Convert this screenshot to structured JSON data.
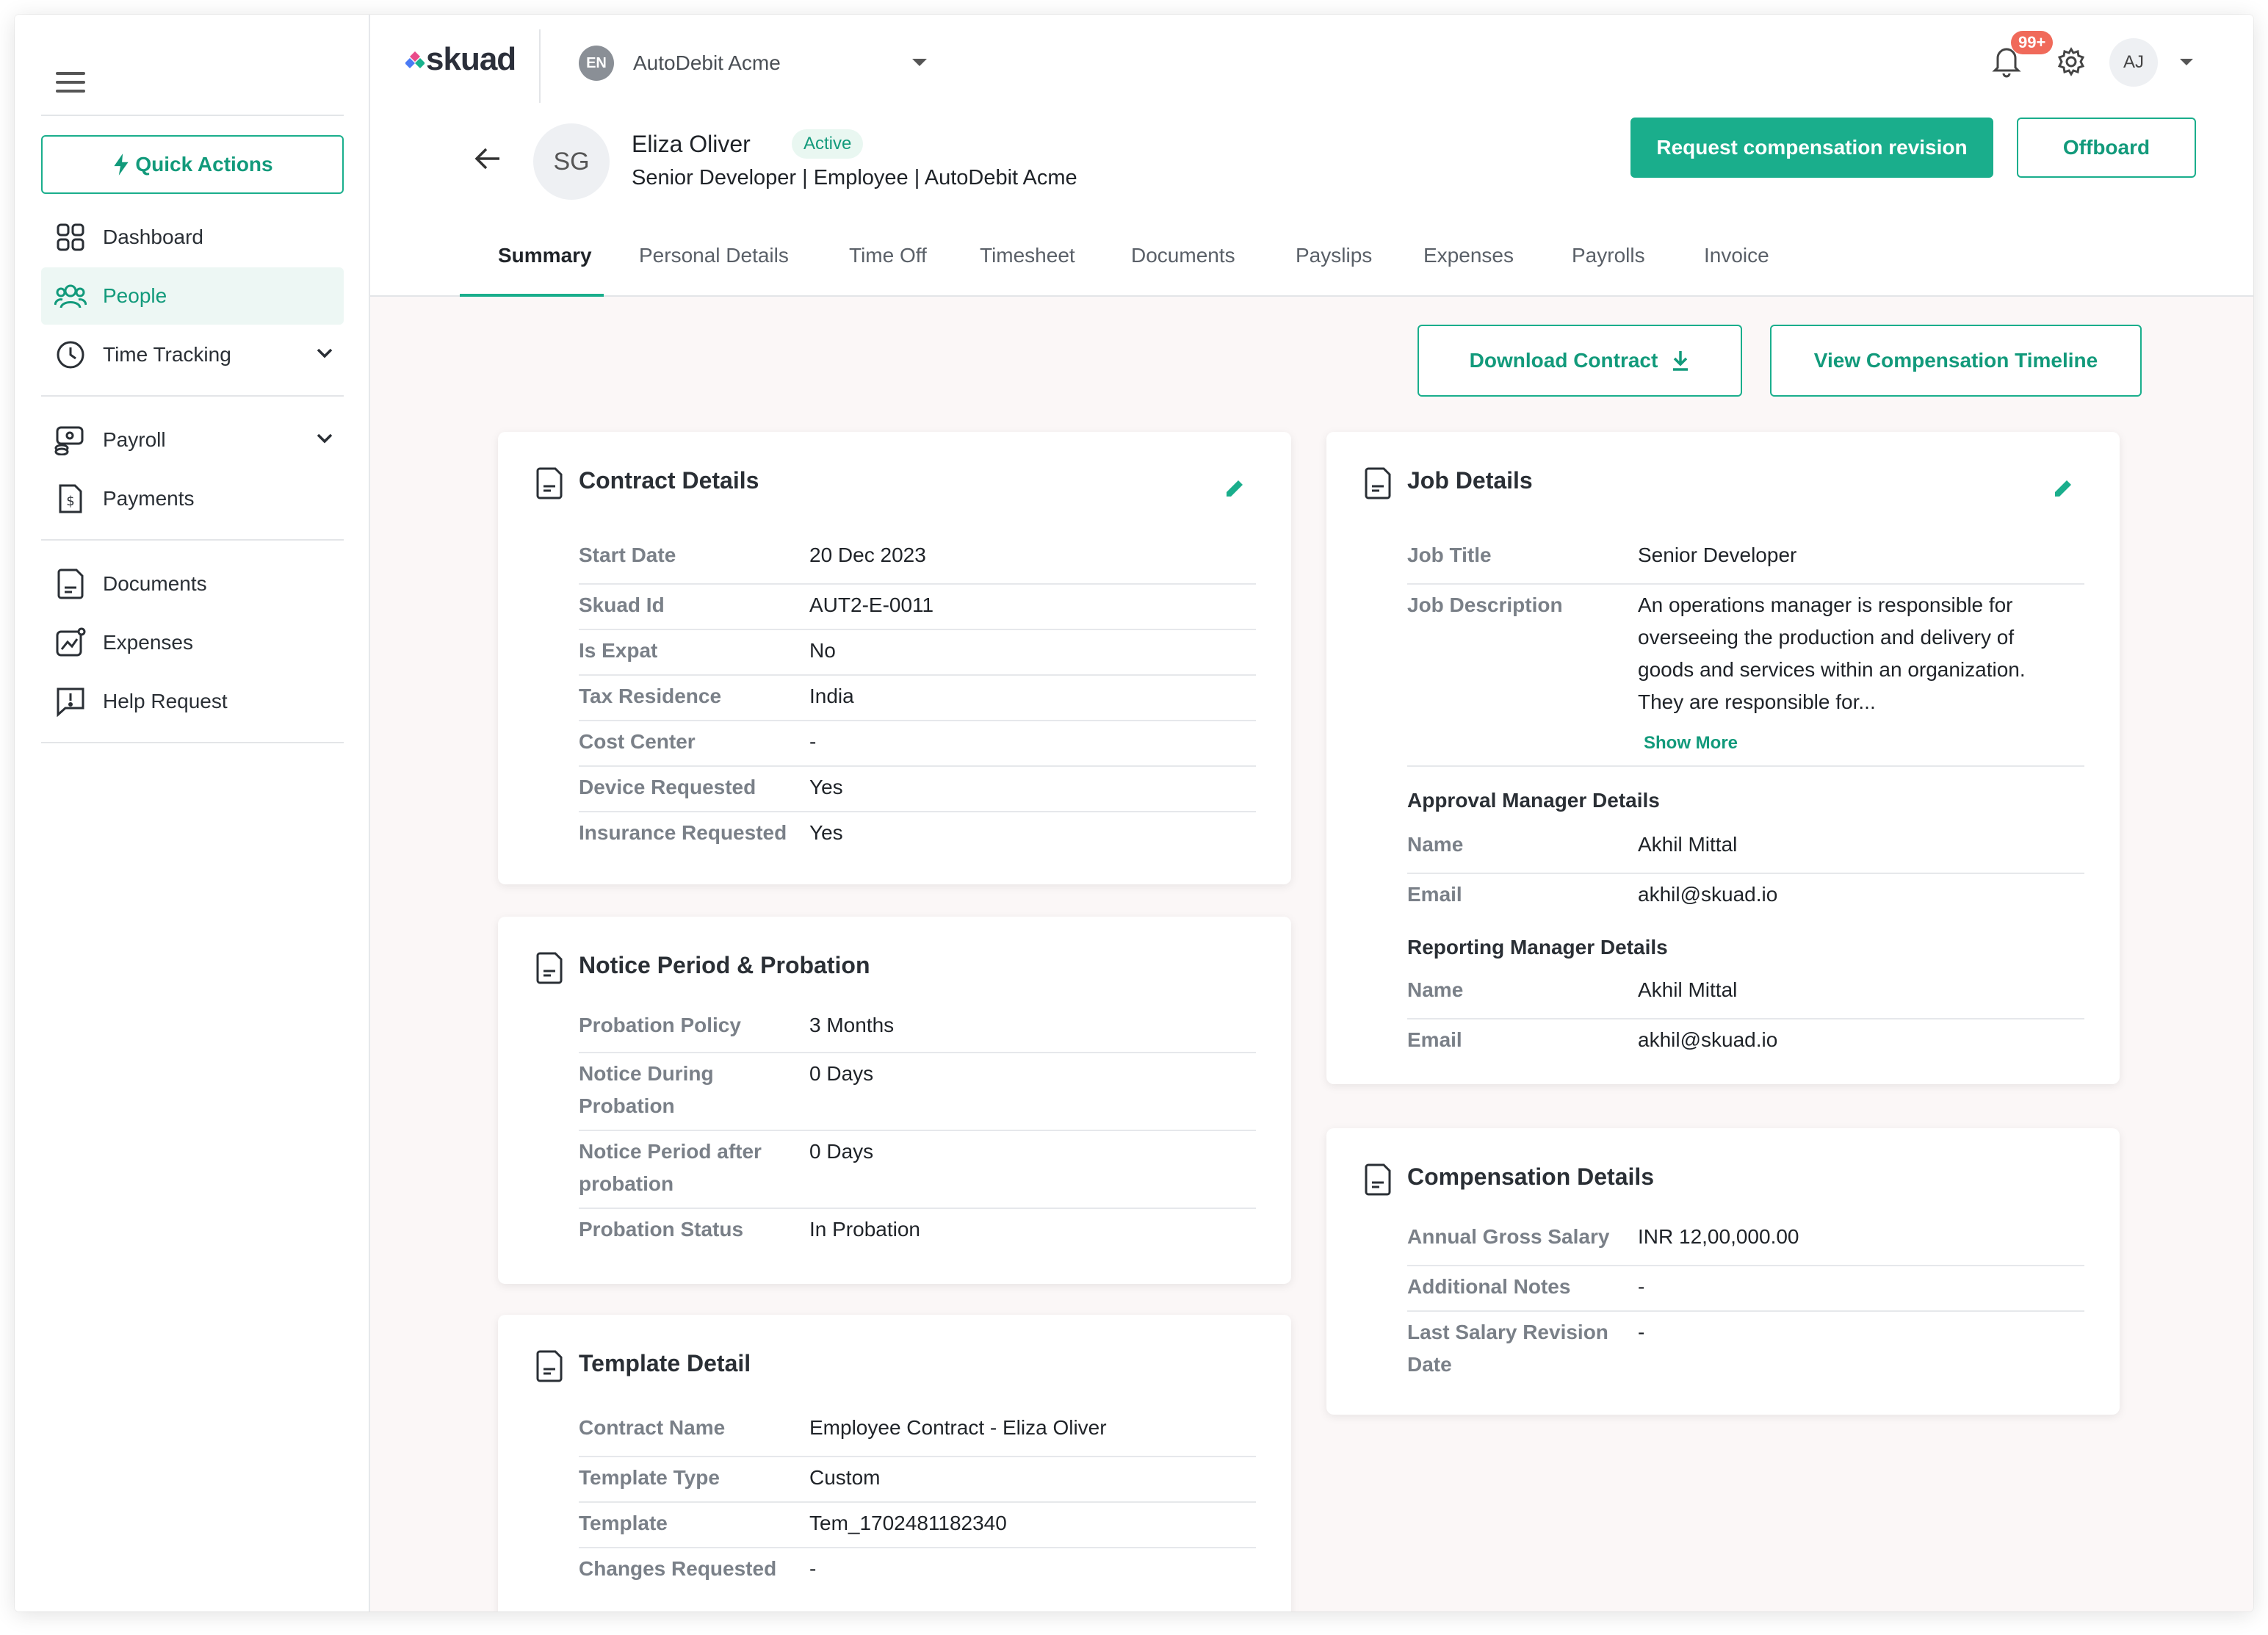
{
  "sidebar": {
    "quick_actions": "Quick Actions",
    "items": [
      {
        "label": "Dashboard",
        "icon": "dashboard-icon"
      },
      {
        "label": "People",
        "icon": "people-icon"
      },
      {
        "label": "Time Tracking",
        "icon": "clock-icon"
      },
      {
        "label": "Payroll",
        "icon": "payroll-icon"
      },
      {
        "label": "Payments",
        "icon": "payments-icon"
      },
      {
        "label": "Documents",
        "icon": "document-icon"
      },
      {
        "label": "Expenses",
        "icon": "expenses-icon"
      },
      {
        "label": "Help Request",
        "icon": "help-icon"
      }
    ]
  },
  "topbar": {
    "logo": "skuad",
    "org_initials": "EN",
    "org_name": "AutoDebit Acme",
    "notification_count": "99+",
    "user_initials": "AJ"
  },
  "profile": {
    "initials": "SG",
    "name": "Eliza Oliver",
    "status": "Active",
    "subtitle": "Senior Developer | Employee | AutoDebit Acme",
    "primary_action": "Request compensation revision",
    "secondary_action": "Offboard"
  },
  "tabs": [
    "Summary",
    "Personal Details",
    "Time Off",
    "Timesheet",
    "Documents",
    "Payslips",
    "Expenses",
    "Payrolls",
    "Invoice"
  ],
  "actions": {
    "download_contract": "Download Contract",
    "view_timeline": "View Compensation Timeline"
  },
  "contract": {
    "title": "Contract Details",
    "rows": [
      {
        "label": "Start Date",
        "value": "20 Dec 2023"
      },
      {
        "label": "Skuad Id",
        "value": "AUT2-E-0011"
      },
      {
        "label": "Is Expat",
        "value": "No"
      },
      {
        "label": "Tax Residence",
        "value": "India"
      },
      {
        "label": "Cost Center",
        "value": "-"
      },
      {
        "label": "Device Requested",
        "value": "Yes"
      },
      {
        "label": "Insurance Requested",
        "value": "Yes"
      }
    ]
  },
  "notice": {
    "title": "Notice Period & Probation",
    "rows": [
      {
        "label": "Probation Policy",
        "value": "3 Months"
      },
      {
        "label": "Notice During Probation",
        "value": "0 Days"
      },
      {
        "label": "Notice Period after probation",
        "value": "0 Days"
      },
      {
        "label": "Probation Status",
        "value": "In Probation"
      }
    ]
  },
  "template": {
    "title": "Template Detail",
    "rows": [
      {
        "label": "Contract Name",
        "value": "Employee Contract - Eliza Oliver"
      },
      {
        "label": "Template Type",
        "value": "Custom"
      },
      {
        "label": "Template",
        "value": "Tem_1702481182340"
      },
      {
        "label": "Changes Requested",
        "value": "-"
      }
    ]
  },
  "job": {
    "title": "Job Details",
    "job_title_label": "Job Title",
    "job_title_value": "Senior Developer",
    "desc_label": "Job Description",
    "desc_value": "An operations manager is responsible for overseeing the production and delivery of goods and services within an organization. They are responsible for...",
    "show_more": "Show More",
    "approval_heading": "Approval Manager Details",
    "approval_name_label": "Name",
    "approval_name": "Akhil Mittal",
    "approval_email_label": "Email",
    "approval_email": "akhil@skuad.io",
    "reporting_heading": "Reporting Manager Details",
    "reporting_name_label": "Name",
    "reporting_name": "Akhil Mittal",
    "reporting_email_label": "Email",
    "reporting_email": "akhil@skuad.io"
  },
  "compensation": {
    "title": "Compensation Details",
    "rows": [
      {
        "label": "Annual Gross Salary",
        "value": "INR 12,00,000.00"
      },
      {
        "label": "Additional Notes",
        "value": "-"
      },
      {
        "label": "Last Salary Revision Date",
        "value": "-"
      }
    ]
  },
  "colors": {
    "accent": "#1aae8c",
    "accent_text": "#129a7b",
    "badge": "#f06a5a",
    "content_bg": "#fbf7f7"
  }
}
